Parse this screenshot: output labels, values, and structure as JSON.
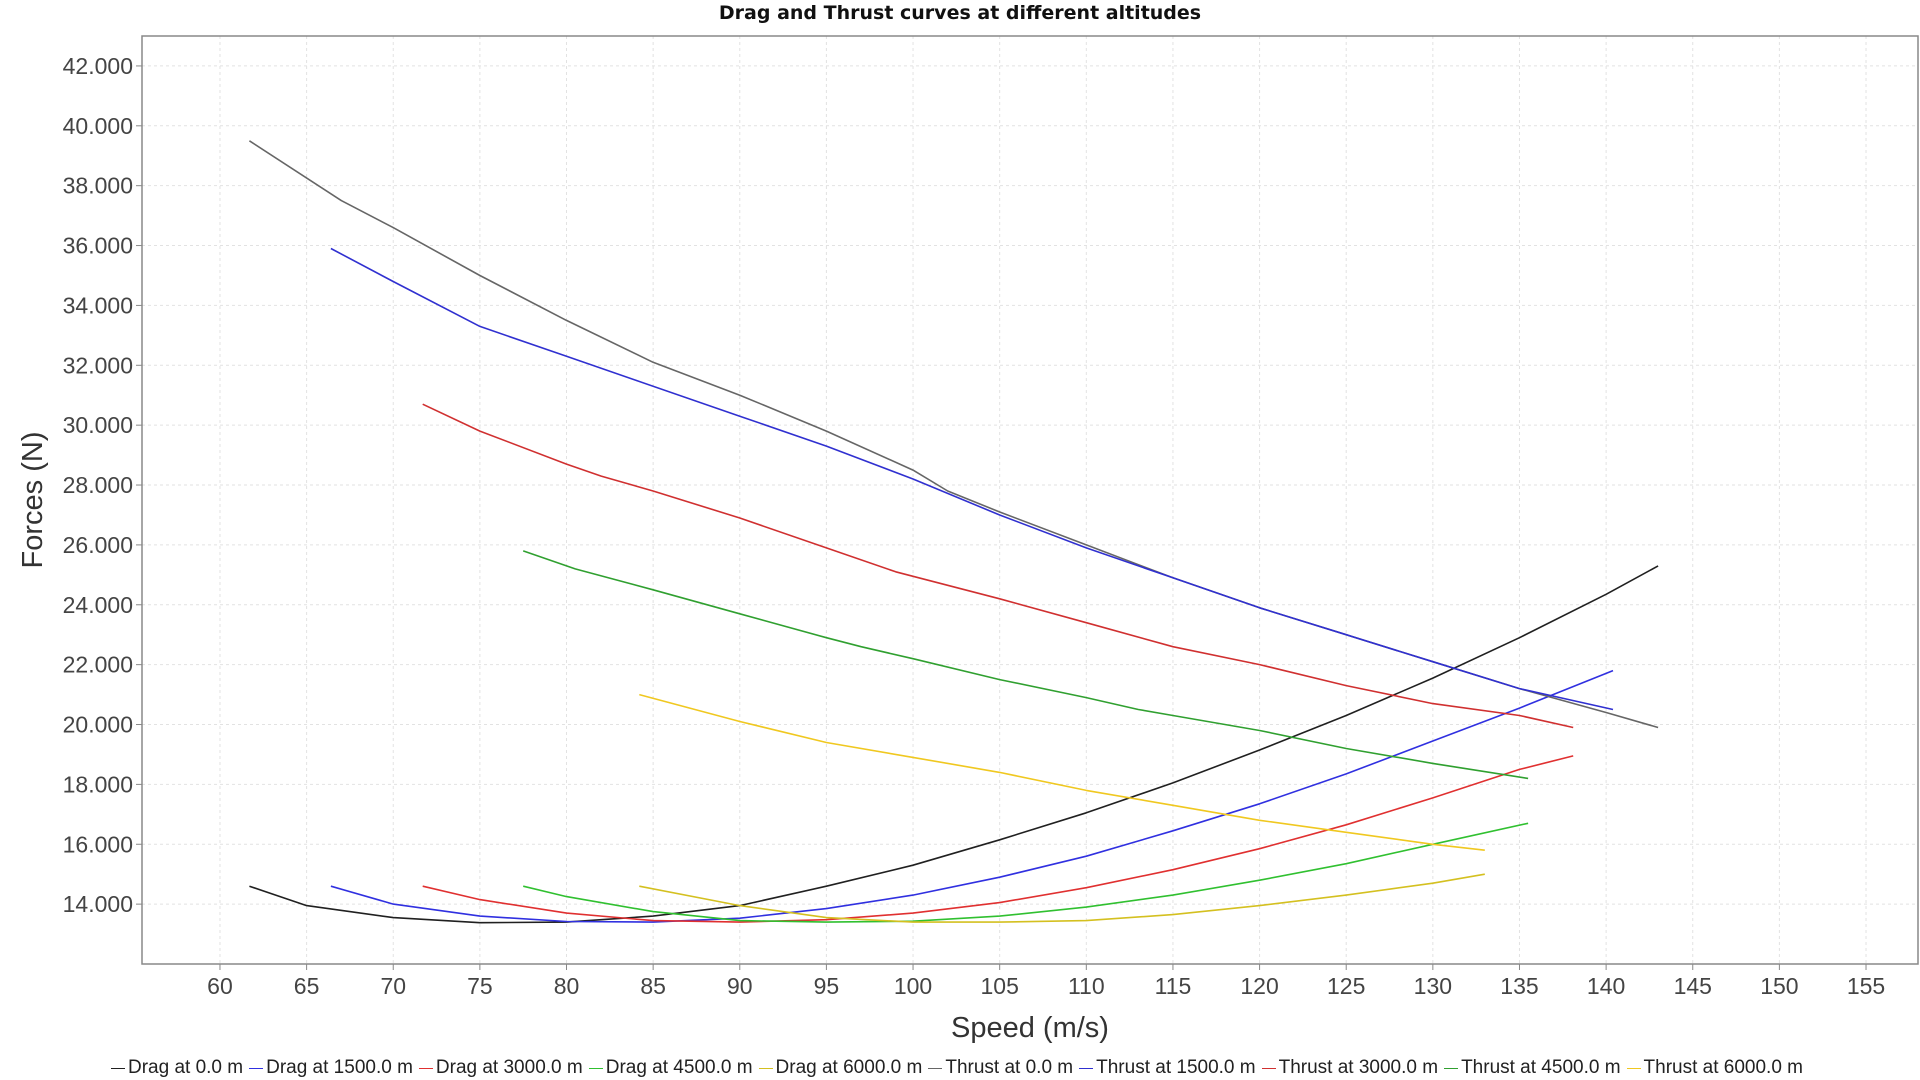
{
  "chart_data": {
    "type": "line",
    "title": "Drag and Thrust curves at different altitudes",
    "xlabel": "Speed (m/s)",
    "ylabel": "Forces (N)",
    "xlim": [
      55.5,
      158
    ],
    "ylim": [
      12000,
      43000
    ],
    "xticks": [
      60,
      65,
      70,
      75,
      80,
      85,
      90,
      95,
      100,
      105,
      110,
      115,
      120,
      125,
      130,
      135,
      140,
      145,
      150,
      155
    ],
    "xtick_labels": [
      "60",
      "65",
      "70",
      "75",
      "80",
      "85",
      "90",
      "95",
      "100",
      "105",
      "110",
      "115",
      "120",
      "125",
      "130",
      "135",
      "140",
      "145",
      "150",
      "155"
    ],
    "yticks": [
      14000,
      16000,
      18000,
      20000,
      22000,
      24000,
      26000,
      28000,
      30000,
      32000,
      34000,
      36000,
      38000,
      40000,
      42000
    ],
    "ytick_labels": [
      "14.000",
      "16.000",
      "18.000",
      "20.000",
      "22.000",
      "24.000",
      "26.000",
      "28.000",
      "30.000",
      "32.000",
      "34.000",
      "36.000",
      "38.000",
      "40.000",
      "42.000"
    ],
    "grid": true,
    "legend_position": "bottom",
    "series": [
      {
        "name": "Drag at 0.0 m",
        "color": "#202020",
        "x": [
          61.7,
          65,
          70,
          75,
          80,
          85,
          90,
          95,
          100,
          105,
          110,
          115,
          120,
          125,
          130,
          135,
          140,
          143
        ],
        "y": [
          14600,
          13950,
          13550,
          13380,
          13400,
          13600,
          13950,
          14600,
          15300,
          16150,
          17050,
          18050,
          19150,
          20300,
          21550,
          22900,
          24350,
          25300
        ]
      },
      {
        "name": "Drag at 1500.0 m",
        "color": "#3030e0",
        "x": [
          66.4,
          70,
          75,
          80,
          85,
          90,
          95,
          100,
          105,
          110,
          115,
          120,
          125,
          130,
          135,
          140.4
        ],
        "y": [
          14600,
          14000,
          13600,
          13420,
          13400,
          13530,
          13850,
          14300,
          14900,
          15600,
          16450,
          17350,
          18350,
          19450,
          20550,
          21800
        ]
      },
      {
        "name": "Drag at 3000.0 m",
        "color": "#e03030",
        "x": [
          71.7,
          75,
          80,
          85,
          90,
          95,
          100,
          105,
          110,
          115,
          120,
          125,
          130,
          135,
          138.1
        ],
        "y": [
          14600,
          14150,
          13700,
          13450,
          13400,
          13480,
          13700,
          14050,
          14550,
          15150,
          15850,
          16650,
          17550,
          18500,
          18950
        ]
      },
      {
        "name": "Drag at 4500.0 m",
        "color": "#30c030",
        "x": [
          77.5,
          80,
          85,
          90,
          95,
          100,
          105,
          110,
          115,
          120,
          125,
          130,
          135.5
        ],
        "y": [
          14600,
          14250,
          13750,
          13450,
          13400,
          13430,
          13600,
          13900,
          14300,
          14800,
          15350,
          16000,
          16700
        ]
      },
      {
        "name": "Drag at 6000.0 m",
        "color": "#d4c020",
        "x": [
          84.2,
          90,
          95,
          100,
          105,
          110,
          115,
          120,
          125,
          130,
          133
        ],
        "y": [
          14600,
          13950,
          13550,
          13400,
          13400,
          13450,
          13650,
          13950,
          14300,
          14700,
          15000
        ]
      },
      {
        "name": "Thrust at 0.0 m",
        "color": "#666666",
        "x": [
          61.7,
          67,
          70,
          75,
          80,
          85,
          90,
          95,
          100,
          102,
          105,
          110,
          115,
          120,
          125,
          130,
          135,
          140,
          143
        ],
        "y": [
          39500,
          37500,
          36600,
          35000,
          33500,
          32100,
          31000,
          29800,
          28500,
          27800,
          27100,
          26000,
          24900,
          23900,
          23000,
          22100,
          21200,
          20400,
          19900
        ]
      },
      {
        "name": "Thrust at 1500.0 m",
        "color": "#3030d0",
        "x": [
          66.4,
          70,
          75,
          80,
          84,
          90,
          95,
          100,
          105,
          110,
          115,
          120,
          125,
          130,
          135,
          140.4
        ],
        "y": [
          35900,
          34800,
          33300,
          32300,
          31500,
          30300,
          29300,
          28200,
          27000,
          25900,
          24900,
          23900,
          23000,
          22100,
          21200,
          20500
        ]
      },
      {
        "name": "Thrust at 3000.0 m",
        "color": "#d03030",
        "x": [
          71.7,
          75,
          80,
          82,
          85,
          90,
          95,
          99,
          105,
          110,
          115,
          120,
          125,
          130,
          135,
          138.1
        ],
        "y": [
          30700,
          29800,
          28700,
          28300,
          27800,
          26900,
          25900,
          25100,
          24200,
          23400,
          22600,
          22000,
          21300,
          20700,
          20300,
          19900
        ]
      },
      {
        "name": "Thrust at 4500.0 m",
        "color": "#30a030",
        "x": [
          77.5,
          80.5,
          85,
          90,
          95,
          97,
          100,
          105,
          110,
          113,
          115,
          120,
          125,
          130,
          135.5
        ],
        "y": [
          25800,
          25200,
          24500,
          23700,
          22900,
          22600,
          22200,
          21500,
          20900,
          20500,
          20300,
          19800,
          19200,
          18700,
          18200
        ]
      },
      {
        "name": "Thrust at 6000.0 m",
        "color": "#f0c820",
        "x": [
          84.2,
          90,
          95,
          100,
          105,
          110,
          115,
          120,
          125,
          130,
          133
        ],
        "y": [
          21000,
          20100,
          19400,
          18900,
          18400,
          17800,
          17300,
          16800,
          16400,
          16000,
          15800
        ]
      }
    ]
  }
}
